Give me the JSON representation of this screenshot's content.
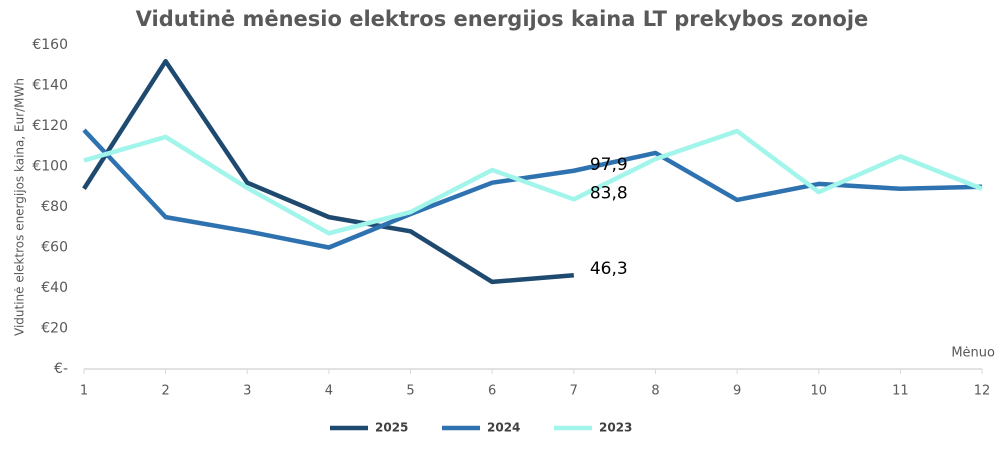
{
  "chart_data": {
    "type": "line",
    "title": "Vidutinė mėnesio elektros energijos kaina LT prekybos zonoje",
    "y_label": "Vidutinė elektros energijos kaina, Eur/MWh",
    "x_label": "Mėnuo",
    "x": [
      1,
      2,
      3,
      4,
      5,
      6,
      7,
      8,
      9,
      10,
      11,
      12
    ],
    "xlim": [
      1,
      12
    ],
    "xticks": [
      1,
      2,
      3,
      4,
      5,
      6,
      7,
      8,
      9,
      10,
      11,
      12
    ],
    "ylim": [
      0,
      160
    ],
    "yticks": [
      {
        "value": 0,
        "label": "€-"
      },
      {
        "value": 20,
        "label": "€20"
      },
      {
        "value": 40,
        "label": "€40"
      },
      {
        "value": 60,
        "label": "€60"
      },
      {
        "value": 80,
        "label": "€80"
      },
      {
        "value": 100,
        "label": "€100"
      },
      {
        "value": 120,
        "label": "€120"
      },
      {
        "value": 140,
        "label": "€140"
      },
      {
        "value": 160,
        "label": "€160"
      }
    ],
    "grid": false,
    "legend": "bottom",
    "series": [
      {
        "name": "2025",
        "color": "#1f4a70",
        "values": [
          89,
          152,
          92,
          75,
          68,
          43,
          46.3,
          null,
          null,
          null,
          null,
          null
        ],
        "value_labels": [
          null,
          null,
          null,
          null,
          null,
          null,
          "46,3",
          null,
          null,
          null,
          null,
          null
        ]
      },
      {
        "name": "2024",
        "color": "#2e72b0",
        "values": [
          118,
          75,
          68,
          60,
          76.5,
          92,
          97.9,
          106.7,
          83.5,
          91.4,
          89,
          90
        ],
        "value_labels": [
          null,
          null,
          null,
          null,
          null,
          null,
          "97,9",
          null,
          null,
          null,
          null,
          null
        ]
      },
      {
        "name": "2023",
        "color": "#a2f5ea",
        "values": [
          103,
          114.6,
          89.4,
          67,
          77.5,
          98.3,
          83.8,
          103.7,
          117.5,
          87.4,
          105,
          89
        ],
        "value_labels": [
          null,
          null,
          null,
          null,
          null,
          null,
          "83,8",
          null,
          null,
          null,
          null,
          null
        ]
      }
    ]
  }
}
